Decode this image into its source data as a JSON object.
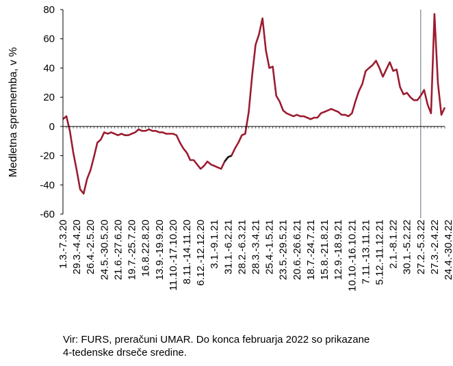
{
  "chart_data": {
    "type": "line",
    "ylabel": "Medletna sprememba, v %",
    "ylim": [
      -60,
      80
    ],
    "yticks": [
      -60,
      -40,
      -20,
      0,
      20,
      40,
      60,
      80
    ],
    "grid": false,
    "legend": "none",
    "line_color": "#9b1b30",
    "highlight_color": "#1a1a1a",
    "vline_color": "#5a6a7a",
    "marker_label": "27.2.-5.3.22",
    "xtick_labels": [
      "1.3.-7.3.20",
      "29.3.-4.4.20",
      "26.4.-2.5.20",
      "24.5.-30.5.20",
      "21.6.-27.6.20",
      "19.7.-25.7.20",
      "16.8.22.8.20",
      "13.9.-19.9.20",
      "11.10.-17.10.20",
      "8.11.-14.11.20",
      "6.12.-12.12.20",
      "3.1.-9.1.21",
      "31.1.-6.2.21",
      "28.2.-6.3.21",
      "28.3.-3.4.21",
      "25.4.-1.5.21",
      "23.5.-29.5.21",
      "20.6.-26.6.21",
      "18.7.-24.7.21",
      "15.8.-21.8.21",
      "12.9.-18.9.21",
      "10.10.-16.10.21",
      "7.11.-13.11.21",
      "5.12.-11.12.21",
      "2.1.-8.1.22",
      "30.1.-5.2.22",
      "27.2.-5.3.22",
      "27.3.-2.4.22",
      "24.4.-30.4.22"
    ],
    "series": [
      {
        "values": [
          5,
          7,
          -3,
          -18,
          -30,
          -43,
          -46,
          -36,
          -30,
          -21,
          -11,
          -9,
          -4,
          -5,
          -4,
          -5,
          -6,
          -5,
          -6,
          -6,
          -5,
          -4,
          -2,
          -3,
          -3,
          -2,
          -3,
          -3,
          -4,
          -4,
          -5,
          -5,
          -5,
          -6,
          -11,
          -15,
          -18,
          -23,
          -23,
          -26,
          -29,
          -27,
          -24,
          -26,
          -27,
          -28,
          -29,
          -24,
          -21,
          -20,
          -15,
          -11,
          -6,
          -5,
          10,
          35,
          56,
          63,
          74,
          52,
          40,
          41,
          21,
          17,
          11,
          9,
          8,
          7,
          8,
          7,
          7,
          6,
          5,
          6,
          6,
          9,
          10,
          11,
          12,
          11,
          10,
          8,
          8,
          7,
          9,
          17,
          24,
          29,
          38,
          40,
          42,
          45,
          40,
          34,
          39,
          44,
          38,
          39,
          27,
          22,
          23,
          20,
          18,
          18,
          21,
          25,
          15,
          9,
          77,
          30,
          8,
          13
        ]
      }
    ]
  },
  "footnote_line1": "Vir: FURS, preračuni UMAR. Do konca februarja 2022 so prikazane",
  "footnote_line2": "4-tedenske drseče sredine."
}
